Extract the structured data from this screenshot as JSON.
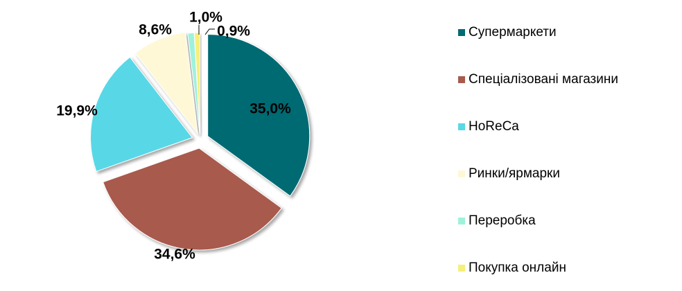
{
  "chart_data": {
    "type": "pie",
    "exploded": true,
    "legend_position": "right",
    "categories": [
      "Супермаркети",
      "Спеціалізовані магазини",
      "HoReCa",
      "Ринки/ярмарки",
      "Переробка",
      "Покупка онлайн"
    ],
    "values": [
      35.0,
      34.6,
      19.9,
      8.6,
      1.0,
      0.9
    ],
    "labels": [
      "35,0%",
      "34,6%",
      "19,9%",
      "8,6%",
      "1,0%",
      "0,9%"
    ],
    "colors": [
      "#006B73",
      "#A85A4E",
      "#59D8E6",
      "#FFF8D6",
      "#9EF2DC",
      "#F5F07A"
    ]
  }
}
